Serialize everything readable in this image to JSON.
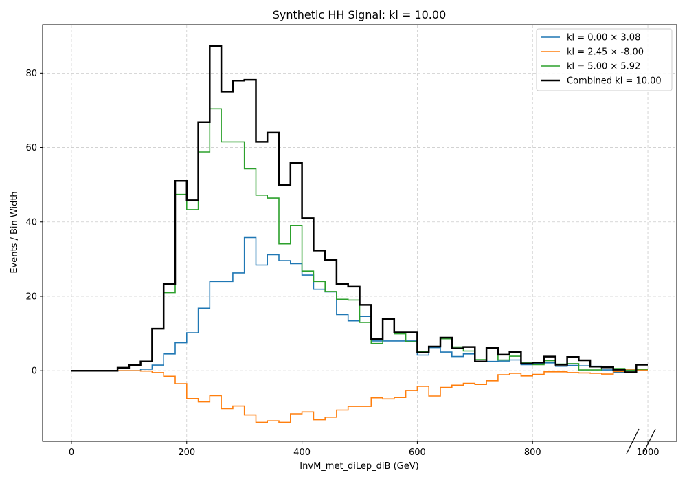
{
  "chart_data": {
    "type": "line",
    "title": "Synthetic HH Signal: kl = 10.00",
    "xlabel": "InvM_met_diLep_diB (GeV)",
    "ylabel": "Events / Bin Width",
    "xlim": [
      -50,
      1050
    ],
    "ylim": [
      -19,
      93
    ],
    "x_ticks": [
      0,
      200,
      400,
      600,
      800,
      1000
    ],
    "y_ticks": [
      0,
      20,
      40,
      60,
      80
    ],
    "grid": true,
    "legend_position": "top-right",
    "x_edges": [
      0,
      20,
      40,
      60,
      80,
      100,
      120,
      140,
      160,
      180,
      200,
      220,
      240,
      260,
      280,
      300,
      320,
      340,
      360,
      380,
      400,
      420,
      440,
      460,
      480,
      500,
      520,
      540,
      560,
      580,
      600,
      620,
      640,
      660,
      680,
      700,
      720,
      740,
      760,
      780,
      800,
      820,
      840,
      860,
      880,
      900,
      920,
      940,
      960,
      980,
      1000
    ],
    "series": [
      {
        "name": "kl = 0.00 × 3.08",
        "color": "#1f77b4",
        "values": [
          0,
          0,
          0,
          0,
          0,
          0,
          0.4,
          1.5,
          4.5,
          7.5,
          10.2,
          16.8,
          24.0,
          24.0,
          26.3,
          35.8,
          28.4,
          31.2,
          29.6,
          28.8,
          25.7,
          21.9,
          21.2,
          15.1,
          13.4,
          14.6,
          8.0,
          8.0,
          8.0,
          8.0,
          4.2,
          6.2,
          5.0,
          3.8,
          4.5,
          2.5,
          2.5,
          2.6,
          2.9,
          1.6,
          1.9,
          2.1,
          1.2,
          1.4,
          1.3,
          1.2,
          0.2,
          -0.4,
          0.2,
          0.2
        ]
      },
      {
        "name": "kl = 2.45 × -8.00",
        "color": "#ff7f0e",
        "values": [
          0,
          0,
          0,
          0,
          0,
          0,
          -0.1,
          -0.5,
          -1.5,
          -3.5,
          -7.5,
          -8.4,
          -6.7,
          -10.2,
          -9.5,
          -11.9,
          -13.9,
          -13.5,
          -13.9,
          -11.6,
          -11.1,
          -13.2,
          -12.5,
          -10.6,
          -9.6,
          -9.6,
          -7.3,
          -7.6,
          -7.2,
          -5.3,
          -4.2,
          -6.8,
          -4.5,
          -3.9,
          -3.4,
          -3.7,
          -2.7,
          -1.1,
          -0.7,
          -1.4,
          -1.0,
          -0.3,
          -0.3,
          -0.5,
          -0.6,
          -0.7,
          -0.9,
          -0.2,
          0.2,
          0.2
        ]
      },
      {
        "name": "kl = 5.00 × 5.92",
        "color": "#2ca02c",
        "values": [
          0,
          0,
          0,
          0,
          0.8,
          1.5,
          2.5,
          11.3,
          21.0,
          47.4,
          43.3,
          58.8,
          70.4,
          61.5,
          61.5,
          54.3,
          47.2,
          46.4,
          34.1,
          39.0,
          26.8,
          24.0,
          21.3,
          19.2,
          19.0,
          13.0,
          7.3,
          13.9,
          9.9,
          7.8,
          5.1,
          6.5,
          8.6,
          6.4,
          5.3,
          3.0,
          6.1,
          2.9,
          3.9,
          2.3,
          1.6,
          2.7,
          1.8,
          1.9,
          0.2,
          0.2,
          0.9,
          0.6,
          0.1,
          0.4
        ]
      },
      {
        "name": "Combined kl = 10.00",
        "color": "#000000",
        "values": [
          0,
          0,
          0,
          0,
          0.8,
          1.5,
          2.5,
          11.3,
          23.3,
          51.0,
          45.8,
          66.8,
          87.3,
          75.0,
          78.0,
          78.2,
          61.5,
          64.0,
          49.9,
          55.8,
          41.0,
          32.3,
          29.8,
          23.3,
          22.6,
          17.7,
          8.5,
          13.9,
          10.3,
          10.3,
          4.9,
          6.5,
          8.9,
          6.0,
          6.4,
          2.5,
          6.1,
          4.3,
          5.0,
          1.9,
          2.2,
          3.8,
          1.6,
          3.7,
          2.8,
          1.1,
          0.9,
          0.3,
          -0.4,
          1.6
        ]
      }
    ]
  }
}
